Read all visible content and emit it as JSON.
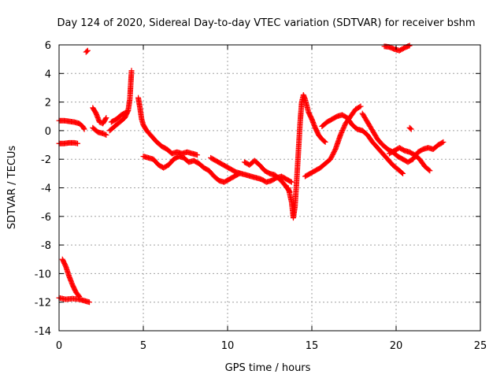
{
  "chart_data": {
    "type": "scatter",
    "title": "Day 124 of 2020, Sidereal Day-to-day VTEC variation (SDTVAR) for receiver bshm",
    "xlabel": "GPS time / hours",
    "ylabel": "SDTVAR / TECUs",
    "xlim": [
      0,
      25
    ],
    "ylim": [
      -14,
      6
    ],
    "xticks": [
      0,
      5,
      10,
      15,
      20,
      25
    ],
    "yticks": [
      6,
      4,
      2,
      0,
      -2,
      -4,
      -6,
      -8,
      -10,
      -12,
      -14
    ],
    "xtick_labels": [
      "0",
      "5",
      "10",
      "15",
      "20",
      "25"
    ],
    "ytick_labels": [
      "6",
      "4",
      "2",
      "0",
      "-2",
      "-4",
      "-6",
      "-8",
      "-10",
      "-12",
      "-14"
    ],
    "grid": true,
    "marker": "plus",
    "color": "#ff0000",
    "series": [
      {
        "name": "arc-upper-start",
        "points": [
          [
            0.0,
            0.7
          ],
          [
            0.3,
            0.7
          ],
          [
            0.6,
            0.65
          ],
          [
            0.9,
            0.6
          ],
          [
            1.2,
            0.5
          ],
          [
            1.4,
            0.3
          ],
          [
            1.5,
            0.1
          ]
        ]
      },
      {
        "name": "arc-lower-start",
        "points": [
          [
            0.0,
            -0.9
          ],
          [
            0.3,
            -0.9
          ],
          [
            0.6,
            -0.85
          ],
          [
            0.9,
            -0.85
          ],
          [
            1.1,
            -0.9
          ]
        ]
      },
      {
        "name": "arc-high-outlier",
        "points": [
          [
            1.6,
            5.5
          ],
          [
            1.7,
            5.6
          ]
        ]
      },
      {
        "name": "arc-descending-start",
        "points": [
          [
            0.2,
            -9.0
          ],
          [
            0.4,
            -9.5
          ],
          [
            0.6,
            -10.2
          ],
          [
            0.8,
            -10.8
          ],
          [
            1.0,
            -11.3
          ],
          [
            1.2,
            -11.6
          ]
        ]
      },
      {
        "name": "arc-bottom-start",
        "points": [
          [
            0.0,
            -11.7
          ],
          [
            0.4,
            -11.8
          ],
          [
            0.8,
            -11.75
          ],
          [
            1.2,
            -11.8
          ],
          [
            1.5,
            -11.9
          ],
          [
            1.8,
            -12.0
          ]
        ]
      },
      {
        "name": "arc-early-1",
        "points": [
          [
            2.0,
            1.6
          ],
          [
            2.2,
            1.2
          ],
          [
            2.4,
            0.6
          ],
          [
            2.6,
            0.5
          ],
          [
            2.8,
            0.9
          ]
        ]
      },
      {
        "name": "arc-early-2",
        "points": [
          [
            2.0,
            0.2
          ],
          [
            2.3,
            -0.1
          ],
          [
            2.6,
            -0.2
          ],
          [
            2.8,
            -0.3
          ]
        ]
      },
      {
        "name": "arc-rise-to-peak",
        "points": [
          [
            3.0,
            0.0
          ],
          [
            3.3,
            0.3
          ],
          [
            3.6,
            0.6
          ],
          [
            3.9,
            0.9
          ],
          [
            4.1,
            1.4
          ],
          [
            4.2,
            2.2
          ],
          [
            4.25,
            3.2
          ],
          [
            4.3,
            4.2
          ]
        ]
      },
      {
        "name": "arc-early-3",
        "points": [
          [
            3.1,
            0.6
          ],
          [
            3.4,
            0.8
          ],
          [
            3.7,
            1.1
          ],
          [
            4.0,
            1.3
          ]
        ]
      },
      {
        "name": "arc-after-peak",
        "points": [
          [
            4.7,
            2.3
          ],
          [
            4.8,
            1.6
          ],
          [
            4.9,
            0.8
          ],
          [
            5.0,
            0.4
          ],
          [
            5.2,
            0.0
          ],
          [
            5.5,
            -0.4
          ],
          [
            5.8,
            -0.8
          ],
          [
            6.1,
            -1.1
          ],
          [
            6.4,
            -1.3
          ],
          [
            6.7,
            -1.6
          ],
          [
            7.0,
            -1.5
          ],
          [
            7.3,
            -1.6
          ],
          [
            7.6,
            -1.5
          ],
          [
            7.9,
            -1.6
          ],
          [
            8.2,
            -1.7
          ]
        ]
      },
      {
        "name": "arc-mid-1",
        "points": [
          [
            5.0,
            -1.8
          ],
          [
            5.3,
            -1.9
          ],
          [
            5.6,
            -2.0
          ],
          [
            5.9,
            -2.4
          ],
          [
            6.2,
            -2.6
          ],
          [
            6.5,
            -2.4
          ],
          [
            6.8,
            -2.0
          ],
          [
            7.1,
            -1.8
          ],
          [
            7.4,
            -1.9
          ],
          [
            7.7,
            -2.2
          ],
          [
            8.0,
            -2.1
          ],
          [
            8.3,
            -2.3
          ],
          [
            8.6,
            -2.6
          ],
          [
            8.9,
            -2.8
          ],
          [
            9.2,
            -3.2
          ],
          [
            9.5,
            -3.5
          ],
          [
            9.8,
            -3.6
          ],
          [
            10.1,
            -3.4
          ],
          [
            10.4,
            -3.2
          ],
          [
            10.7,
            -3.0
          ]
        ]
      },
      {
        "name": "arc-mid-2",
        "points": [
          [
            9.0,
            -1.9
          ],
          [
            9.3,
            -2.1
          ],
          [
            9.6,
            -2.3
          ],
          [
            9.9,
            -2.5
          ],
          [
            10.2,
            -2.7
          ],
          [
            10.5,
            -2.9
          ],
          [
            10.8,
            -3.0
          ],
          [
            11.1,
            -3.1
          ],
          [
            11.4,
            -3.2
          ],
          [
            11.7,
            -3.3
          ],
          [
            12.0,
            -3.4
          ],
          [
            12.3,
            -3.6
          ],
          [
            12.6,
            -3.5
          ],
          [
            12.9,
            -3.3
          ],
          [
            13.2,
            -3.2
          ],
          [
            13.5,
            -3.4
          ],
          [
            13.8,
            -3.6
          ]
        ]
      },
      {
        "name": "arc-mid-3",
        "points": [
          [
            11.0,
            -2.2
          ],
          [
            11.3,
            -2.4
          ],
          [
            11.6,
            -2.1
          ],
          [
            11.9,
            -2.4
          ],
          [
            12.2,
            -2.8
          ],
          [
            12.5,
            -3.0
          ],
          [
            12.8,
            -3.1
          ],
          [
            13.1,
            -3.4
          ],
          [
            13.4,
            -3.8
          ],
          [
            13.7,
            -4.3
          ]
        ]
      },
      {
        "name": "arc-dip-and-spike",
        "points": [
          [
            13.6,
            -4.0
          ],
          [
            13.8,
            -5.0
          ],
          [
            13.9,
            -6.1
          ],
          [
            14.0,
            -5.3
          ],
          [
            14.1,
            -3.5
          ],
          [
            14.2,
            -1.5
          ],
          [
            14.3,
            0.5
          ],
          [
            14.4,
            2.0
          ],
          [
            14.5,
            2.5
          ],
          [
            14.6,
            2.2
          ],
          [
            14.8,
            1.3
          ],
          [
            15.0,
            0.8
          ],
          [
            15.2,
            0.2
          ],
          [
            15.4,
            -0.3
          ],
          [
            15.6,
            -0.6
          ],
          [
            15.8,
            -0.8
          ]
        ]
      },
      {
        "name": "arc-late-1",
        "points": [
          [
            14.6,
            -3.2
          ],
          [
            14.9,
            -3.0
          ],
          [
            15.2,
            -2.8
          ],
          [
            15.5,
            -2.6
          ],
          [
            15.8,
            -2.3
          ],
          [
            16.1,
            -2.0
          ],
          [
            16.4,
            -1.3
          ],
          [
            16.7,
            -0.3
          ],
          [
            17.0,
            0.5
          ],
          [
            17.3,
            1.0
          ],
          [
            17.6,
            1.5
          ],
          [
            17.9,
            1.7
          ]
        ]
      },
      {
        "name": "arc-late-2",
        "points": [
          [
            15.6,
            0.3
          ],
          [
            15.9,
            0.6
          ],
          [
            16.2,
            0.8
          ],
          [
            16.5,
            1.0
          ],
          [
            16.8,
            1.1
          ],
          [
            17.1,
            0.9
          ],
          [
            17.4,
            0.4
          ],
          [
            17.7,
            0.1
          ],
          [
            18.0,
            0.0
          ],
          [
            18.3,
            -0.3
          ],
          [
            18.6,
            -0.8
          ],
          [
            18.9,
            -1.2
          ],
          [
            19.2,
            -1.6
          ],
          [
            19.5,
            -2.0
          ],
          [
            19.8,
            -2.4
          ],
          [
            20.1,
            -2.7
          ],
          [
            20.4,
            -3.0
          ]
        ]
      },
      {
        "name": "arc-late-3",
        "points": [
          [
            18.0,
            1.2
          ],
          [
            18.3,
            0.6
          ],
          [
            18.6,
            0.0
          ],
          [
            18.9,
            -0.6
          ],
          [
            19.2,
            -1.0
          ],
          [
            19.5,
            -1.3
          ],
          [
            19.8,
            -1.5
          ],
          [
            20.1,
            -1.8
          ],
          [
            20.4,
            -2.0
          ],
          [
            20.7,
            -2.2
          ],
          [
            21.0,
            -2.0
          ],
          [
            21.3,
            -1.5
          ],
          [
            21.6,
            -1.3
          ],
          [
            21.9,
            -1.2
          ],
          [
            22.2,
            -1.3
          ],
          [
            22.5,
            -1.0
          ],
          [
            22.8,
            -0.8
          ]
        ]
      },
      {
        "name": "arc-late-4",
        "points": [
          [
            19.6,
            -1.6
          ],
          [
            19.9,
            -1.4
          ],
          [
            20.2,
            -1.2
          ],
          [
            20.5,
            -1.4
          ],
          [
            20.8,
            -1.5
          ],
          [
            21.1,
            -1.7
          ],
          [
            21.4,
            -2.0
          ],
          [
            21.7,
            -2.5
          ],
          [
            22.0,
            -2.8
          ]
        ]
      },
      {
        "name": "arc-late-outlier",
        "points": [
          [
            20.8,
            0.2
          ],
          [
            20.9,
            0.1
          ]
        ]
      },
      {
        "name": "arc-late-high",
        "points": [
          [
            19.3,
            5.9
          ],
          [
            19.6,
            5.85
          ],
          [
            19.9,
            5.7
          ],
          [
            20.2,
            5.6
          ],
          [
            20.5,
            5.8
          ],
          [
            20.8,
            5.95
          ]
        ]
      }
    ]
  }
}
